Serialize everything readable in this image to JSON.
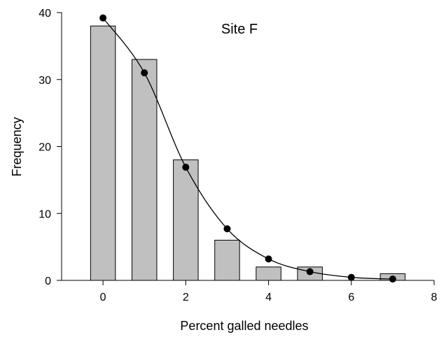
{
  "chart_data": {
    "type": "bar",
    "title": "Site F",
    "xlabel": "Percent galled needles",
    "ylabel": "Frequency",
    "xlim": [
      -1,
      8
    ],
    "ylim": [
      0,
      40
    ],
    "x_ticks": [
      0,
      2,
      4,
      6,
      8
    ],
    "y_ticks": [
      0,
      10,
      20,
      30,
      40
    ],
    "grid": false,
    "legend": "none",
    "bar_color": "#c0c0c0",
    "series": [
      {
        "type": "bar",
        "x": [
          0,
          1,
          2,
          3,
          4,
          5,
          6,
          7
        ],
        "values": [
          38,
          33,
          18,
          6,
          2,
          2,
          0,
          1
        ]
      },
      {
        "type": "line",
        "markers": true,
        "x": [
          0,
          1,
          2,
          3,
          4,
          5,
          6,
          7
        ],
        "values": [
          39.2,
          31.0,
          16.9,
          7.7,
          3.2,
          1.3,
          0.45,
          0.2
        ]
      }
    ]
  }
}
